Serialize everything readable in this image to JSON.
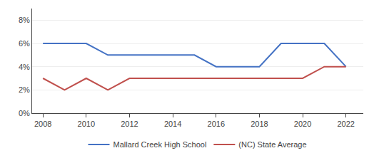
{
  "chart_data": {
    "type": "line",
    "x": [
      2008,
      2009,
      2010,
      2011,
      2012,
      2013,
      2014,
      2015,
      2016,
      2017,
      2018,
      2019,
      2020,
      2021,
      2022
    ],
    "series": [
      {
        "name": "Mallard Creek High School",
        "color": "#4472C4",
        "values": [
          0.06,
          0.06,
          0.06,
          0.05,
          0.05,
          0.05,
          0.05,
          0.05,
          0.04,
          0.04,
          0.04,
          0.06,
          0.06,
          0.06,
          0.04
        ]
      },
      {
        "name": "(NC) State Average",
        "color": "#C0504D",
        "values": [
          0.03,
          0.02,
          0.03,
          0.02,
          0.03,
          0.03,
          0.03,
          0.03,
          0.03,
          0.03,
          0.03,
          0.03,
          0.03,
          0.04,
          0.04
        ]
      }
    ],
    "xlim": [
      2007.5,
      2022.8
    ],
    "xticks": [
      2008,
      2010,
      2012,
      2014,
      2016,
      2018,
      2020,
      2022
    ],
    "ylim": [
      0,
      0.09
    ],
    "yticks": [
      {
        "value": 0,
        "label": "0%"
      },
      {
        "value": 0.02,
        "label": "2%"
      },
      {
        "value": 0.04,
        "label": "4%"
      },
      {
        "value": 0.06,
        "label": "6%"
      },
      {
        "value": 0.08,
        "label": "8%"
      }
    ],
    "grid": true,
    "legend": "bottom"
  }
}
